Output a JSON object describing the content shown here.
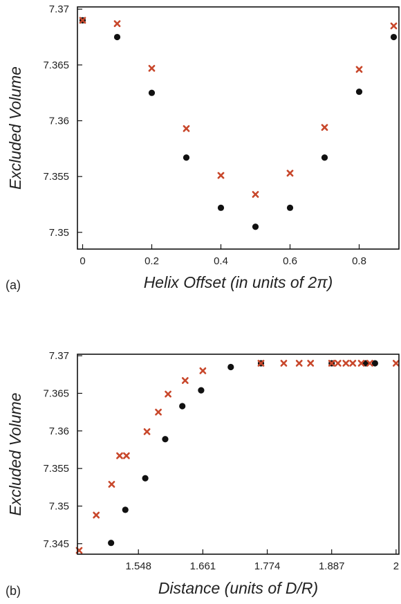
{
  "chart_data": [
    {
      "type": "scatter",
      "panel_label": "(a)",
      "xlabel": "Helix Offset (in units of 2π)",
      "ylabel": "Excluded Volume",
      "xlim": [
        -0.015,
        0.915
      ],
      "ylim": [
        7.3485,
        7.3702
      ],
      "xticks": [
        "0",
        "0.2",
        "0.4",
        "0.6",
        "0.8"
      ],
      "xtick_values": [
        0,
        0.2,
        0.4,
        0.6,
        0.8
      ],
      "yticks": [
        "7.37",
        "7.365",
        "7.36",
        "7.355",
        "7.35"
      ],
      "ytick_values": [
        7.37,
        7.365,
        7.36,
        7.355,
        7.35
      ],
      "series": [
        {
          "marker": "circle",
          "color": "#111111",
          "x": [
            0,
            0.1,
            0.2,
            0.3,
            0.4,
            0.5,
            0.6,
            0.7,
            0.8,
            0.9
          ],
          "y": [
            7.369,
            7.3675,
            7.3625,
            7.3567,
            7.3522,
            7.3505,
            7.3522,
            7.3567,
            7.3626,
            7.3675
          ]
        },
        {
          "marker": "x",
          "color": "#c8472b",
          "x": [
            0,
            0.1,
            0.2,
            0.3,
            0.4,
            0.5,
            0.6,
            0.7,
            0.8,
            0.9
          ],
          "y": [
            7.369,
            7.3687,
            7.3647,
            7.3593,
            7.3551,
            7.3534,
            7.3553,
            7.3594,
            7.3646,
            7.3685
          ]
        }
      ]
    },
    {
      "type": "scatter",
      "panel_label": "(b)",
      "xlabel": "Distance (units of D/R)",
      "ylabel": "Excluded Volume",
      "xlim": [
        1.441,
        2.005
      ],
      "ylim": [
        7.3436,
        7.3702
      ],
      "xticks": [
        "1.548",
        "1.661",
        "1.774",
        "1.887",
        "2"
      ],
      "xtick_values": [
        1.548,
        1.661,
        1.774,
        1.887,
        2.0
      ],
      "yticks": [
        "7.37",
        "7.365",
        "7.36",
        "7.355",
        "7.35",
        "7.345"
      ],
      "ytick_values": [
        7.37,
        7.365,
        7.36,
        7.355,
        7.35,
        7.345
      ],
      "series": [
        {
          "marker": "circle",
          "color": "#111111",
          "x": [
            1.5,
            1.525,
            1.56,
            1.595,
            1.625,
            1.658,
            1.71,
            1.763,
            1.887,
            1.947,
            1.963
          ],
          "y": [
            7.3451,
            7.3495,
            7.3537,
            7.3589,
            7.3633,
            7.3654,
            7.3685,
            7.369,
            7.369,
            7.369,
            7.369
          ]
        },
        {
          "marker": "x",
          "color": "#c8472b",
          "x": [
            1.444,
            1.474,
            1.501,
            1.515,
            1.527,
            1.563,
            1.583,
            1.6,
            1.63,
            1.661,
            1.763,
            1.803,
            1.83,
            1.85,
            1.887,
            1.898,
            1.912,
            1.924,
            1.939,
            1.954,
            2.0
          ],
          "y": [
            7.3441,
            7.3488,
            7.3529,
            7.3567,
            7.3567,
            7.3599,
            7.3625,
            7.3649,
            7.3667,
            7.368,
            7.369,
            7.369,
            7.369,
            7.369,
            7.369,
            7.369,
            7.369,
            7.369,
            7.369,
            7.369,
            7.369
          ]
        }
      ]
    }
  ]
}
